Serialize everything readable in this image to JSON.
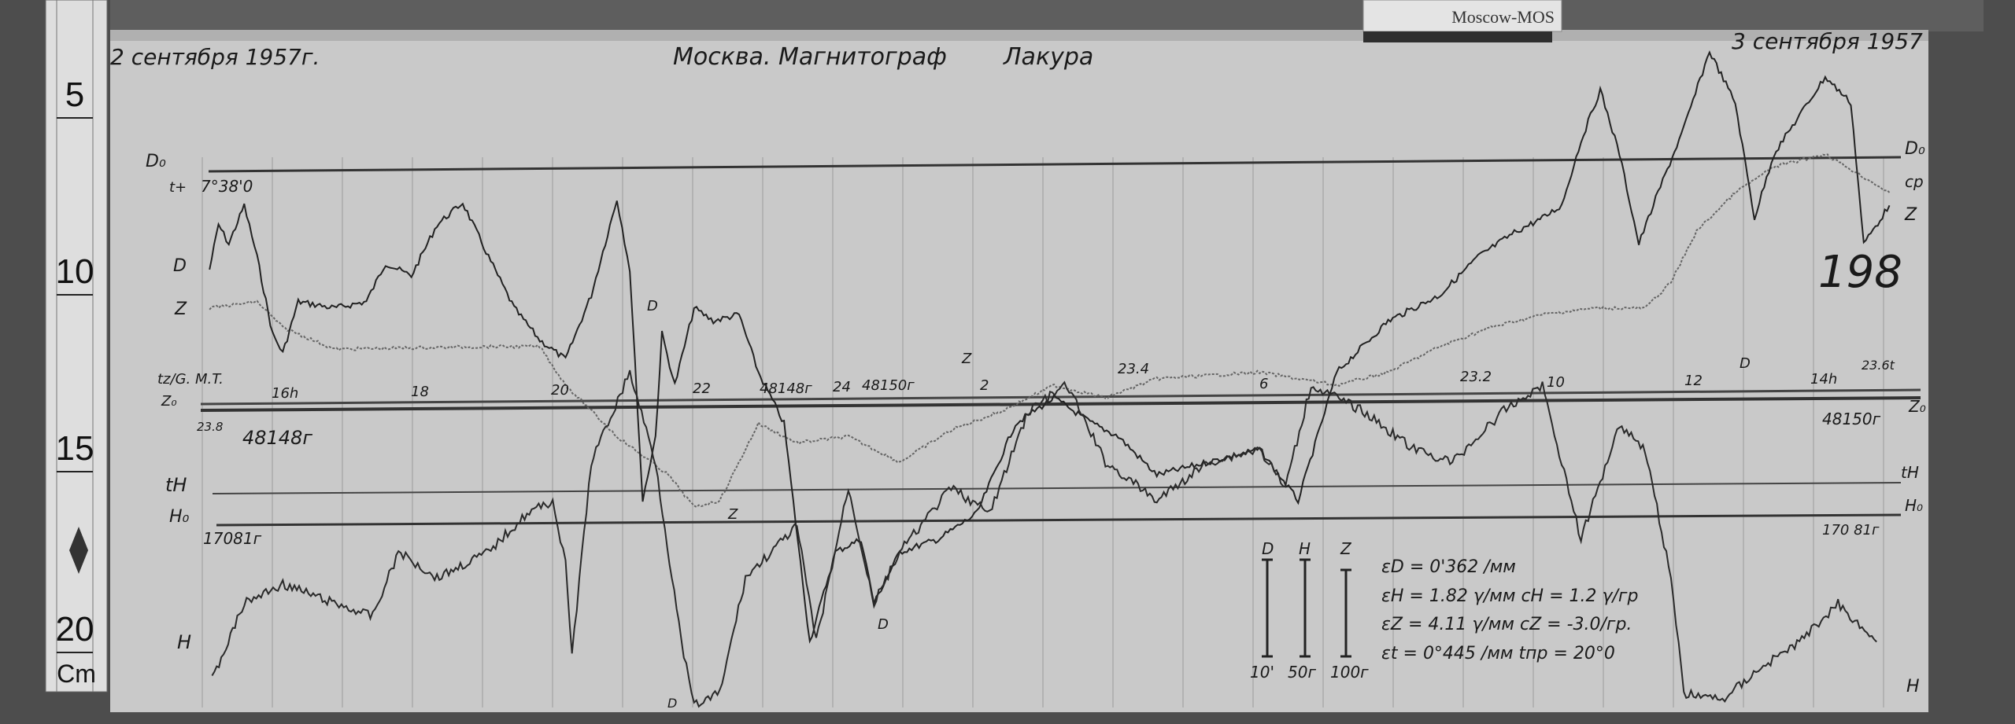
{
  "label_tag": "Moscow-MOS",
  "header": {
    "date_start": "2 сентября 1957г.",
    "title": "Москва. Магнитограф",
    "instrument": "Лакура",
    "date_end": "3 сентября 1957"
  },
  "ruler": {
    "marks": [
      "5",
      "10",
      "15",
      "20"
    ],
    "unit": "Cm"
  },
  "sheet_number": "198",
  "left_labels": {
    "d_base": "D₀",
    "d_base_value": "7°38'0",
    "d_temp": "t+",
    "d_trace": "D",
    "z_trace": "Z",
    "z_base": "tz/G. M.T.",
    "z_base_sub": "Z₀",
    "z_temp": "23.8",
    "z_base_value": "48148г",
    "h_temp": "tH",
    "h_base": "H₀",
    "h_base_value": "17081г",
    "h_trace": "H"
  },
  "right_labels": {
    "d_base": "D₀",
    "d_mark": "cp",
    "z_mark": "Z",
    "z_temp": "23.6t",
    "z_base": "Z₀",
    "z_base_value": "48150г",
    "h_temp": "tH",
    "h_base": "H₀",
    "h_base_value": "170 81г",
    "h_trace": "H"
  },
  "time_axis": {
    "hours": [
      "16h",
      "18",
      "20",
      "22",
      "24",
      "2",
      "6",
      "10",
      "12",
      "14h"
    ],
    "baseline_notes": [
      "48148г",
      "48150г",
      "23.4",
      "23.2"
    ]
  },
  "trace_markers": [
    "D",
    "Z",
    "D",
    "Z",
    "D",
    "D"
  ],
  "scale_bars": {
    "labels": [
      "D",
      "H",
      "Z"
    ],
    "values": [
      "10'",
      "50г",
      "100г"
    ]
  },
  "constants": [
    "εD = 0'362 /мм",
    "εH = 1.82 γ/мм   cH = 1.2 γ/гр",
    "εZ = 4.11 γ/мм   cZ = -3.0/гр.",
    "εt = 0°445 /мм   tпр = 20°0"
  ]
}
